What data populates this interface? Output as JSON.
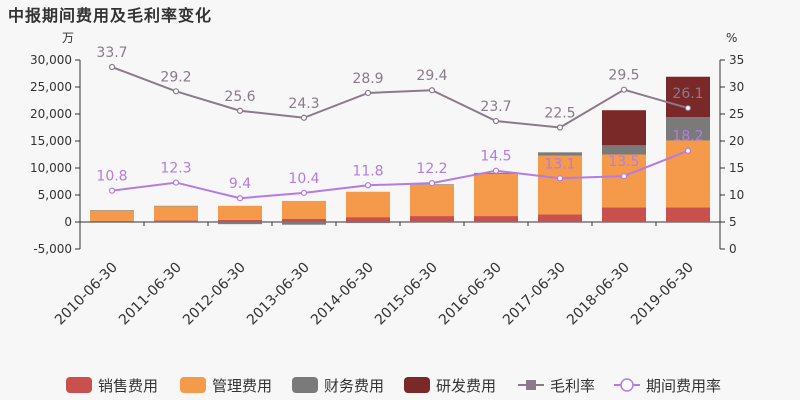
{
  "title": "中报期间费用及毛利率变化",
  "chart_data": {
    "type": "bar",
    "title": "中报期间费用及毛利率变化",
    "y_left_unit": "万",
    "y_right_unit": "%",
    "y_left_ticks": [
      "30,000",
      "25,000",
      "20,000",
      "15,000",
      "10,000",
      "5,000",
      "0",
      "-5,000"
    ],
    "y_right_ticks": [
      "35",
      "30",
      "25",
      "20",
      "15",
      "10",
      "5",
      "0"
    ],
    "y_left_range": [
      -5000,
      30000
    ],
    "y_right_range": [
      0,
      35
    ],
    "categories": [
      "2010-06-30",
      "2011-06-30",
      "2012-06-30",
      "2013-06-30",
      "2014-06-30",
      "2015-06-30",
      "2016-06-30",
      "2017-06-30",
      "2018-06-30",
      "2019-06-30"
    ],
    "series": [
      {
        "name": "销售费用",
        "type": "bar",
        "color": "#c9504c",
        "values": [
          200,
          300,
          400,
          600,
          900,
          1100,
          1100,
          1400,
          2700,
          2700
        ]
      },
      {
        "name": "管理费用",
        "type": "bar",
        "color": "#f5994a",
        "values": [
          1900,
          2600,
          2600,
          3300,
          4700,
          5800,
          7800,
          10900,
          9800,
          12400
        ]
      },
      {
        "name": "财务费用",
        "type": "bar",
        "color": "#7a7a7a",
        "values": [
          100,
          100,
          -400,
          -500,
          -200,
          100,
          200,
          600,
          1700,
          4300
        ]
      },
      {
        "name": "研发费用",
        "type": "bar",
        "color": "#7b2828",
        "values": [
          0,
          0,
          0,
          0,
          0,
          0,
          0,
          0,
          6500,
          7500
        ]
      },
      {
        "name": "毛利率",
        "type": "line",
        "axis": "right",
        "color": "#8a7a8a",
        "values": [
          33.7,
          29.2,
          25.6,
          24.3,
          28.9,
          29.4,
          23.7,
          22.5,
          29.5,
          26.1
        ]
      },
      {
        "name": "期间费用率",
        "type": "line",
        "axis": "right",
        "color": "#b57be3",
        "values": [
          10.8,
          12.3,
          9.4,
          10.4,
          11.8,
          12.2,
          14.5,
          13.1,
          13.5,
          18.2
        ]
      }
    ],
    "gm_labels": [
      "33.7",
      "29.2",
      "25.6",
      "24.3",
      "28.9",
      "29.4",
      "23.7",
      "22.5",
      "29.5",
      "26.1"
    ],
    "pr_labels": [
      "10.8",
      "12.3",
      "9.4",
      "10.4",
      "11.8",
      "12.2",
      "14.5",
      "13.1",
      "13.5",
      "18.2"
    ],
    "legend_position": "bottom"
  }
}
